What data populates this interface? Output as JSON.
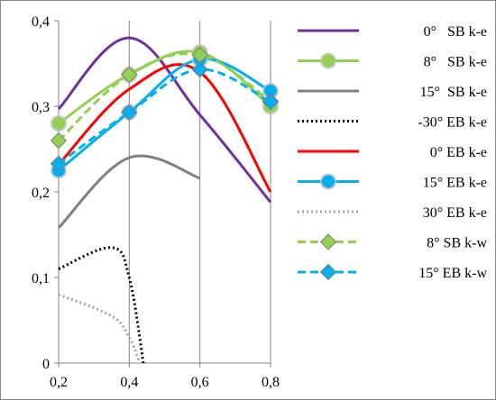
{
  "chart_data": {
    "type": "line",
    "title": "",
    "xlabel": "",
    "ylabel": "",
    "xlim": [
      0.2,
      0.8
    ],
    "ylim": [
      0,
      0.4
    ],
    "x_ticks": [
      {
        "value": 0.2,
        "label": "0,2"
      },
      {
        "value": 0.4,
        "label": "0,4"
      },
      {
        "value": 0.6,
        "label": "0,6"
      },
      {
        "value": 0.8,
        "label": "0,8"
      }
    ],
    "y_ticks": [
      {
        "value": 0,
        "label": "0"
      },
      {
        "value": 0.1,
        "label": "0,1"
      },
      {
        "value": 0.2,
        "label": "0,2"
      },
      {
        "value": 0.3,
        "label": "0,3"
      },
      {
        "value": 0.4,
        "label": "0,4"
      }
    ],
    "grid": "vertical gridlines only",
    "legend_position": "right",
    "series": [
      {
        "name": "0°   SB k-e",
        "color": "#7030A0",
        "dash": "solid",
        "marker": "none",
        "x": [
          0.2,
          0.4,
          0.6,
          0.8
        ],
        "y": [
          0.297,
          0.38,
          0.29,
          0.188
        ]
      },
      {
        "name": "8°   SB k-e",
        "color": "#92D050",
        "dash": "solid",
        "marker": "circle",
        "x": [
          0.2,
          0.4,
          0.6,
          0.8
        ],
        "y": [
          0.28,
          0.337,
          0.363,
          0.3
        ]
      },
      {
        "name": "15°  SB k-e",
        "color": "#808080",
        "dash": "solid",
        "marker": "none",
        "x": [
          0.2,
          0.4,
          0.6
        ],
        "y": [
          0.158,
          0.24,
          0.216
        ]
      },
      {
        "name": "-30° EB k-e",
        "color": "#000000",
        "dash": "dot",
        "marker": "none",
        "x": [
          0.2,
          0.35,
          0.4,
          0.44
        ],
        "y": [
          0.11,
          0.135,
          0.1,
          0
        ]
      },
      {
        "name": "0° EB k-e",
        "color": "#FF0000",
        "dash": "solid",
        "marker": "none",
        "x": [
          0.2,
          0.4,
          0.6,
          0.8
        ],
        "y": [
          0.232,
          0.32,
          0.34,
          0.2
        ]
      },
      {
        "name": "15° EB k-e",
        "color": "#00B0F0",
        "dash": "solid",
        "marker": "circle",
        "x": [
          0.2,
          0.4,
          0.6,
          0.8
        ],
        "y": [
          0.225,
          0.293,
          0.355,
          0.318
        ]
      },
      {
        "name": "30° EB k-e",
        "color": "#A6A6A6",
        "dash": "dot",
        "marker": "none",
        "x": [
          0.2,
          0.35,
          0.4,
          0.43
        ],
        "y": [
          0.08,
          0.055,
          0.03,
          0
        ]
      },
      {
        "name": "8° SB k-w",
        "color": "#92D050",
        "dash": "dash",
        "marker": "diamond",
        "x": [
          0.2,
          0.4,
          0.6,
          0.8
        ],
        "y": [
          0.26,
          0.337,
          0.36,
          0.306
        ]
      },
      {
        "name": "15° EB k-w",
        "color": "#00B0F0",
        "dash": "dash",
        "marker": "diamond",
        "x": [
          0.2,
          0.4,
          0.6,
          0.8
        ],
        "y": [
          0.233,
          0.293,
          0.343,
          0.305
        ]
      }
    ]
  }
}
